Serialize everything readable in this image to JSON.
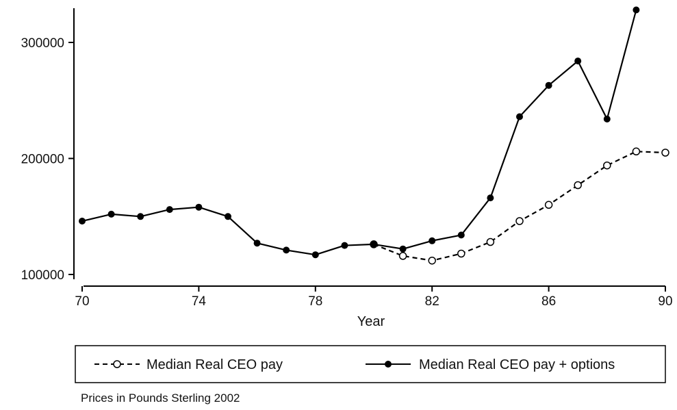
{
  "chart_data": {
    "type": "line",
    "xlabel": "Year",
    "ylabel": "",
    "xlim": [
      70,
      90
    ],
    "ylim": [
      100000,
      330000
    ],
    "x_ticks": [
      "70",
      "74",
      "78",
      "82",
      "86",
      "90"
    ],
    "y_ticks": [
      "100000",
      "200000",
      "300000"
    ],
    "grid": false,
    "legend_position": "bottom",
    "series": [
      {
        "name": "Median Real CEO pay",
        "style": "dashed-hollow-circle",
        "x": [
          80,
          81,
          82,
          83,
          84,
          85,
          86,
          87,
          88,
          89,
          90
        ],
        "values": [
          126000,
          116000,
          112000,
          118000,
          128000,
          146000,
          160000,
          177000,
          194000,
          206000,
          205000
        ]
      },
      {
        "name": "Median Real CEO pay + options",
        "style": "solid-filled-circle",
        "x": [
          70,
          71,
          72,
          73,
          74,
          75,
          76,
          77,
          78,
          79,
          80,
          81,
          82,
          83,
          84,
          85,
          86,
          87,
          88,
          89
        ],
        "values": [
          146000,
          152000,
          150000,
          156000,
          158000,
          150000,
          127000,
          121000,
          117000,
          125000,
          126000,
          122000,
          129000,
          134000,
          166000,
          236000,
          263000,
          284000,
          234000,
          328000
        ]
      }
    ],
    "note": "Prices in Pounds Sterling 2002"
  }
}
